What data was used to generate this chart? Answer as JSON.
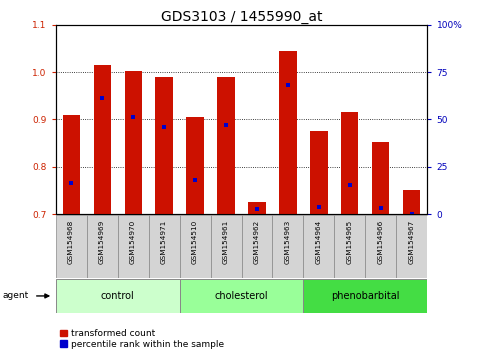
{
  "title": "GDS3103 / 1455990_at",
  "samples": [
    "GSM154968",
    "GSM154969",
    "GSM154970",
    "GSM154971",
    "GSM154510",
    "GSM154961",
    "GSM154962",
    "GSM154963",
    "GSM154964",
    "GSM154965",
    "GSM154966",
    "GSM154967"
  ],
  "transformed_count": [
    0.91,
    1.015,
    1.002,
    0.99,
    0.905,
    0.99,
    0.725,
    1.045,
    0.875,
    0.915,
    0.853,
    0.752
  ],
  "percentile_rank_left": [
    0.765,
    0.945,
    0.905,
    0.885,
    0.773,
    0.888,
    0.71,
    0.972,
    0.715,
    0.762,
    0.712,
    0.7
  ],
  "bar_bottom": 0.7,
  "ylim_left": [
    0.7,
    1.1
  ],
  "ylim_right": [
    0,
    100
  ],
  "yticks_left": [
    0.7,
    0.8,
    0.9,
    1.0,
    1.1
  ],
  "yticks_right": [
    0,
    25,
    50,
    75,
    100
  ],
  "ytick_labels_right": [
    "0",
    "25",
    "50",
    "75",
    "100%"
  ],
  "groups": [
    {
      "name": "control",
      "indices": [
        0,
        1,
        2,
        3
      ],
      "color": "#ccffcc"
    },
    {
      "name": "cholesterol",
      "indices": [
        4,
        5,
        6,
        7
      ],
      "color": "#99ff99"
    },
    {
      "name": "phenobarbital",
      "indices": [
        8,
        9,
        10,
        11
      ],
      "color": "#44dd44"
    }
  ],
  "bar_color": "#cc1100",
  "dot_color": "#0000cc",
  "bar_width": 0.55,
  "background_color": "#ffffff",
  "agent_label": "agent",
  "legend_items": [
    "transformed count",
    "percentile rank within the sample"
  ],
  "legend_colors": [
    "#cc1100",
    "#0000cc"
  ],
  "title_fontsize": 10,
  "tick_fontsize": 6.5,
  "sample_fontsize": 5.2,
  "group_fontsize": 7,
  "legend_fontsize": 6.5
}
